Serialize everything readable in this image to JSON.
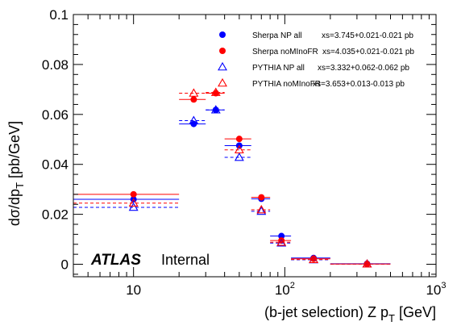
{
  "chart_data": {
    "type": "scatter",
    "title": "",
    "xlabel": "(b-jet selection) Z p",
    "xlabel_sub": "T",
    "xlabel_unit": " [GeV]",
    "ylabel": "dσ/dp",
    "ylabel_sub": "T",
    "ylabel_unit": " [pb/GeV]",
    "x_scale": "log",
    "xlim": [
      4,
      1000
    ],
    "ylim": [
      -0.005,
      0.1
    ],
    "y_ticks": [
      0,
      0.02,
      0.04,
      0.06,
      0.08,
      0.1
    ],
    "y_tick_labels": [
      "0",
      "0.02",
      "0.04",
      "0.06",
      "0.08",
      "0.1"
    ],
    "x_ticks": [
      10,
      100,
      1000
    ],
    "x_tick_labels": [
      "10",
      "10",
      "10"
    ],
    "x_tick_exps": [
      "",
      "2",
      "3"
    ],
    "grid": false,
    "legend_position": "top-right",
    "annotation": {
      "brand": "ATLAS",
      "status": "Internal"
    },
    "series": [
      {
        "name": "Sherpa NP all",
        "xs_text": "xs=3.745+0.021-0.021 pb",
        "color": "#0000ff",
        "marker": "filled-circle",
        "line": "solid",
        "points": [
          {
            "x": 10,
            "xlo": 3,
            "xhi": 20,
            "y": 0.026
          },
          {
            "x": 25,
            "xlo": 20,
            "xhi": 30,
            "y": 0.0562
          },
          {
            "x": 35,
            "xlo": 30,
            "xhi": 40,
            "y": 0.0618
          },
          {
            "x": 50,
            "xlo": 40,
            "xhi": 60,
            "y": 0.0475
          },
          {
            "x": 70,
            "xlo": 60,
            "xhi": 80,
            "y": 0.0262
          },
          {
            "x": 95,
            "xlo": 80,
            "xhi": 110,
            "y": 0.0113
          },
          {
            "x": 155,
            "xlo": 110,
            "xhi": 200,
            "y": 0.0025
          },
          {
            "x": 350,
            "xlo": 200,
            "xhi": 500,
            "y": 0.0002
          }
        ]
      },
      {
        "name": "Sherpa noMInoFR",
        "xs_text": "xs=4.035+0.021-0.021 pb",
        "color": "#ff0000",
        "marker": "filled-circle",
        "line": "solid",
        "points": [
          {
            "x": 10,
            "xlo": 3,
            "xhi": 20,
            "y": 0.028
          },
          {
            "x": 25,
            "xlo": 20,
            "xhi": 30,
            "y": 0.066
          },
          {
            "x": 35,
            "xlo": 30,
            "xhi": 40,
            "y": 0.0685
          },
          {
            "x": 50,
            "xlo": 40,
            "xhi": 60,
            "y": 0.0502
          },
          {
            "x": 70,
            "xlo": 60,
            "xhi": 80,
            "y": 0.0268
          },
          {
            "x": 95,
            "xlo": 80,
            "xhi": 110,
            "y": 0.0095
          },
          {
            "x": 155,
            "xlo": 110,
            "xhi": 200,
            "y": 0.0022
          },
          {
            "x": 350,
            "xlo": 200,
            "xhi": 500,
            "y": 0.0001
          }
        ]
      },
      {
        "name": "PYTHIA NP all",
        "xs_text": "xs=3.332+0.062-0.062 pb",
        "color": "#0000ff",
        "marker": "open-triangle",
        "line": "dashed",
        "points": [
          {
            "x": 10,
            "xlo": 3,
            "xhi": 20,
            "y": 0.0228
          },
          {
            "x": 25,
            "xlo": 20,
            "xhi": 30,
            "y": 0.0575
          },
          {
            "x": 35,
            "xlo": 30,
            "xhi": 40,
            "y": 0.0618
          },
          {
            "x": 50,
            "xlo": 40,
            "xhi": 60,
            "y": 0.0428
          },
          {
            "x": 70,
            "xlo": 60,
            "xhi": 80,
            "y": 0.0212
          },
          {
            "x": 95,
            "xlo": 80,
            "xhi": 110,
            "y": 0.0085
          },
          {
            "x": 155,
            "xlo": 110,
            "xhi": 200,
            "y": 0.0018
          },
          {
            "x": 350,
            "xlo": 200,
            "xhi": 500,
            "y": 0.0001
          }
        ]
      },
      {
        "name": "PYTHIA noMInoFR",
        "xs_text": "xs=3.653+0.013-0.013 pb",
        "color": "#ff0000",
        "marker": "open-triangle",
        "line": "dashed",
        "points": [
          {
            "x": 10,
            "xlo": 3,
            "xhi": 20,
            "y": 0.0245
          },
          {
            "x": 25,
            "xlo": 20,
            "xhi": 30,
            "y": 0.0685
          },
          {
            "x": 35,
            "xlo": 30,
            "xhi": 40,
            "y": 0.0688
          },
          {
            "x": 50,
            "xlo": 40,
            "xhi": 60,
            "y": 0.0458
          },
          {
            "x": 70,
            "xlo": 60,
            "xhi": 80,
            "y": 0.0218
          },
          {
            "x": 95,
            "xlo": 80,
            "xhi": 110,
            "y": 0.0088
          },
          {
            "x": 155,
            "xlo": 110,
            "xhi": 200,
            "y": 0.0019
          },
          {
            "x": 350,
            "xlo": 200,
            "xhi": 500,
            "y": 0.0001
          }
        ]
      }
    ]
  }
}
